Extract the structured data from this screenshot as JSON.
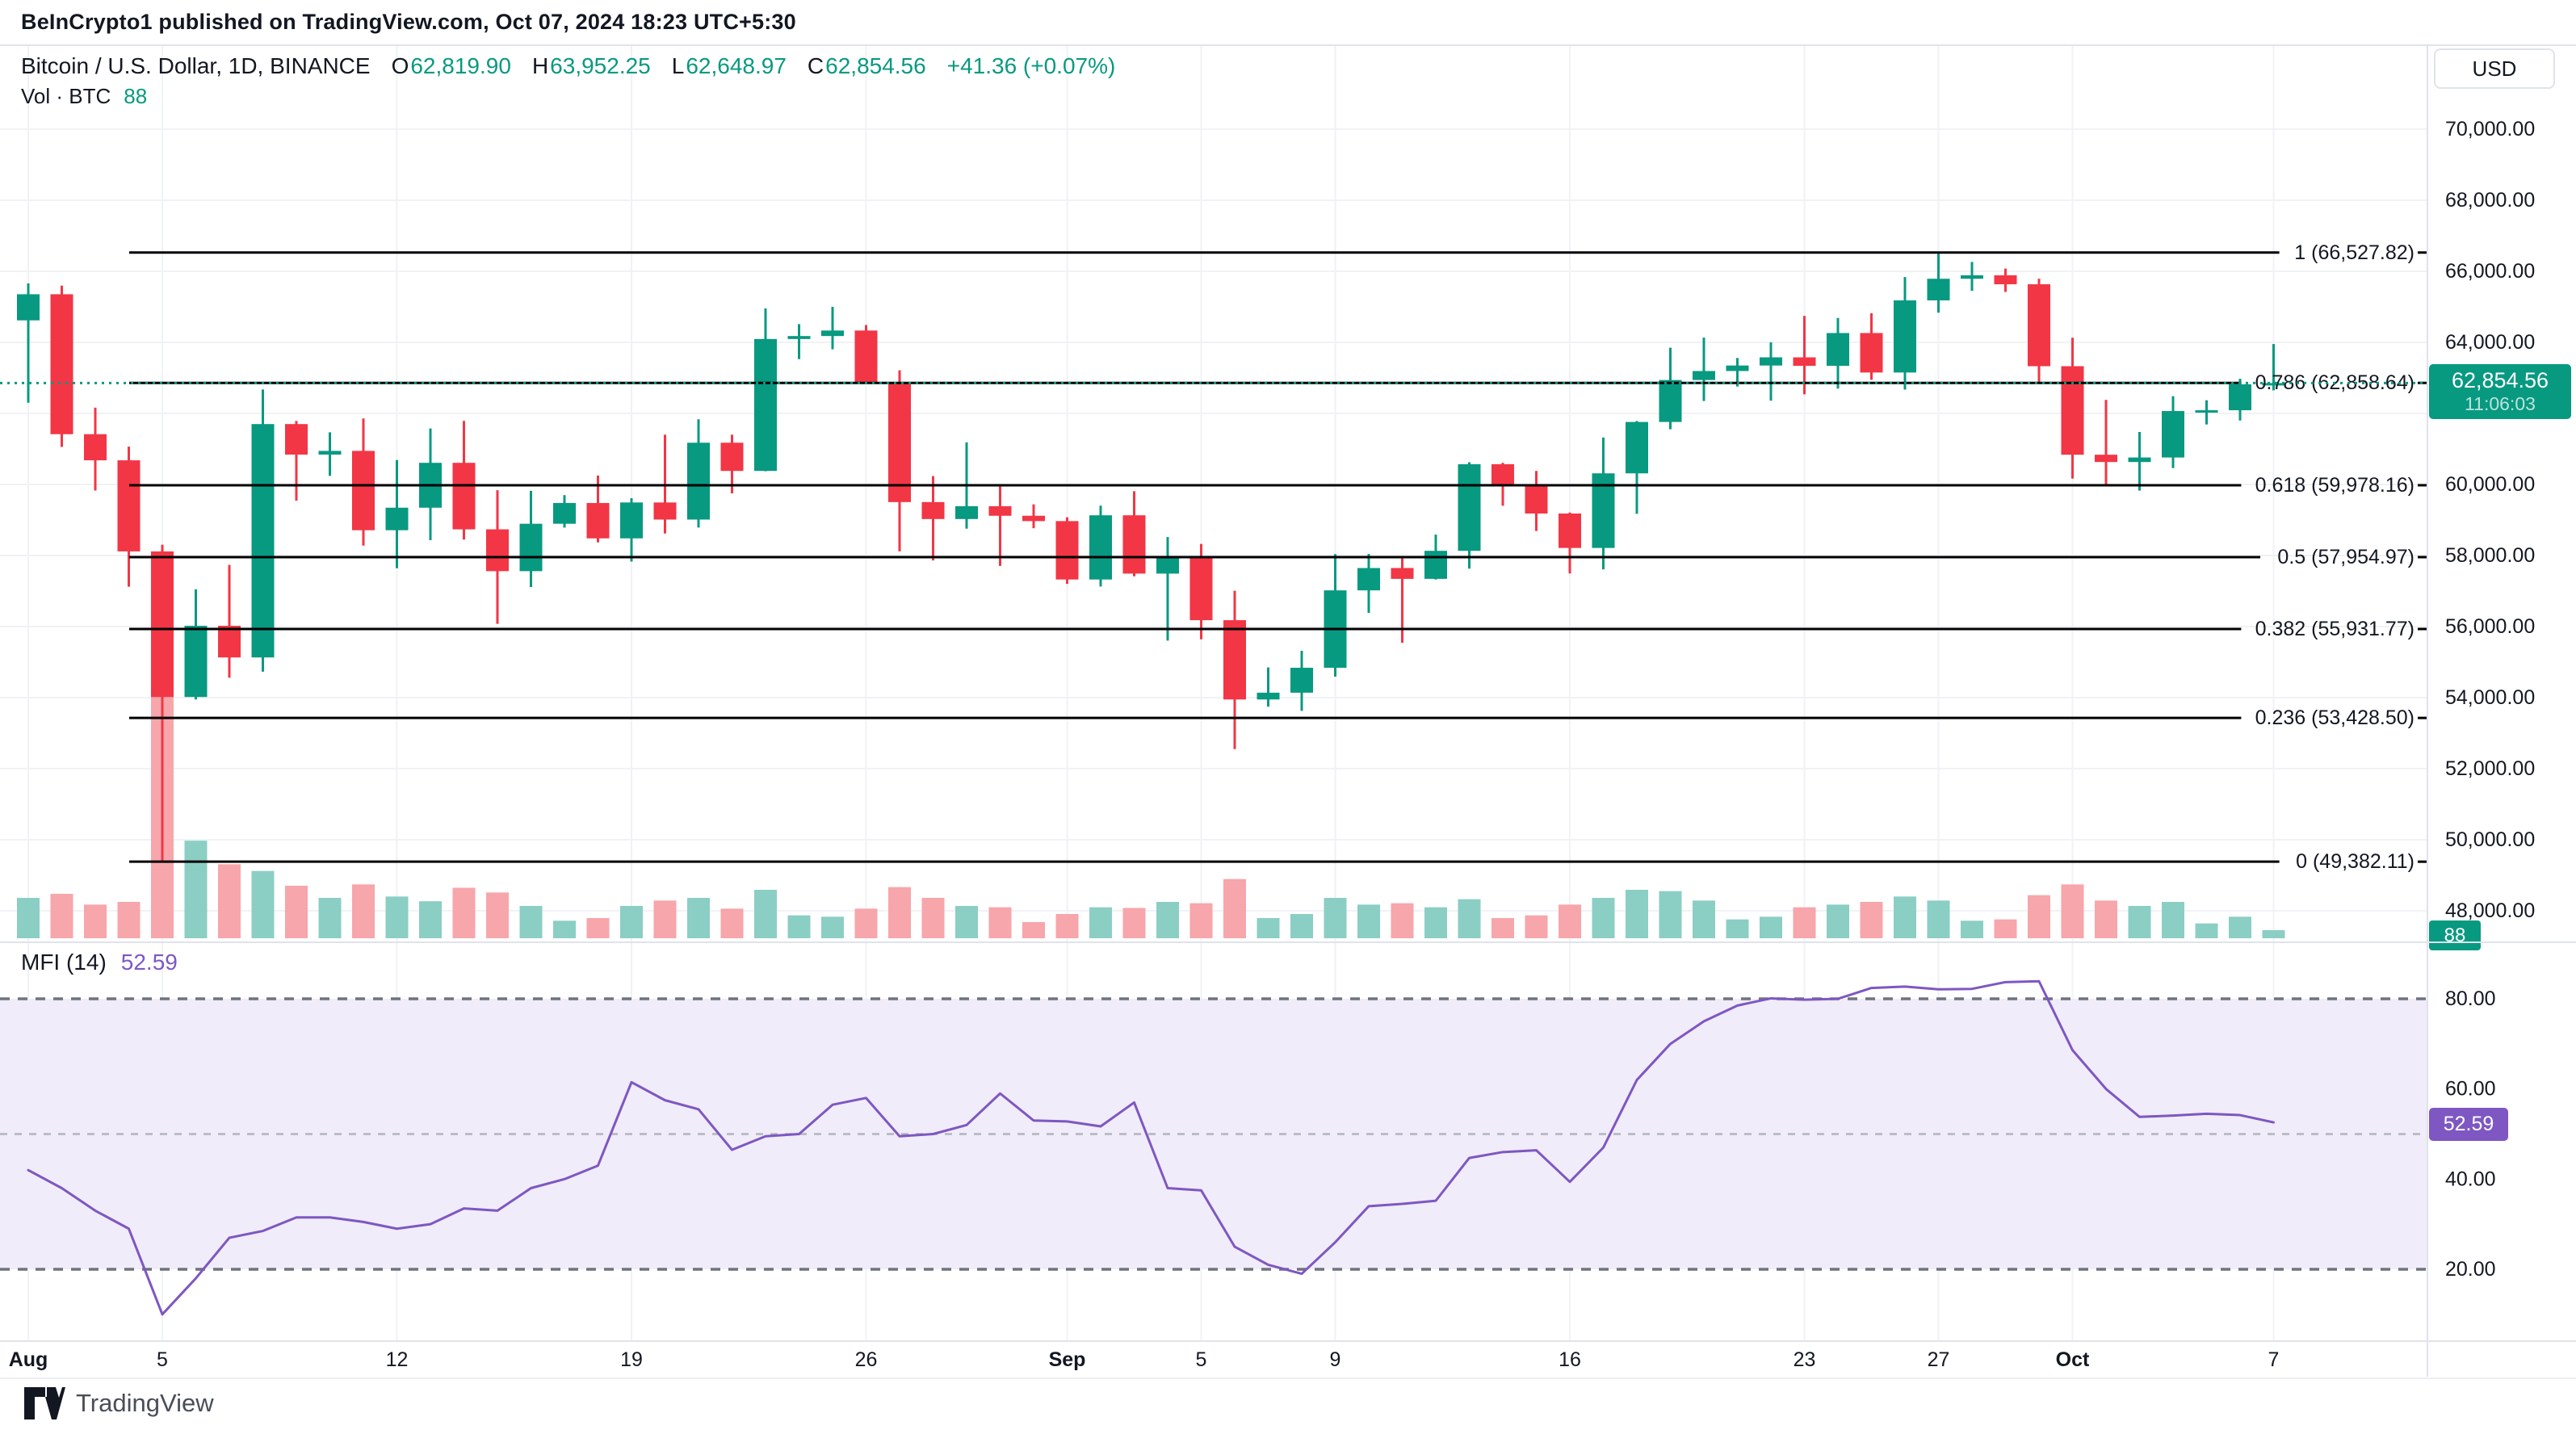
{
  "header": {
    "attribution": "BeInCrypto1 published on TradingView.com, Oct 07, 2024 18:23 UTC+5:30"
  },
  "toolbar": {
    "currency_button": "USD"
  },
  "legend": {
    "symbol": "Bitcoin / U.S. Dollar, 1D, BINANCE",
    "ohlc": [
      {
        "k": "O",
        "v": "62,819.90"
      },
      {
        "k": "H",
        "v": "63,952.25"
      },
      {
        "k": "L",
        "v": "62,648.97"
      },
      {
        "k": "C",
        "v": "62,854.56"
      }
    ],
    "change": "+41.36 (+0.07%)",
    "volume_label": "Vol · BTC",
    "volume_value": "88"
  },
  "price_axis": {
    "price_tag": {
      "price": "62,854.56",
      "countdown": "11:06:03"
    },
    "volume_tag": "88",
    "ticks": [
      {
        "v": 70000,
        "l": "70,000.00"
      },
      {
        "v": 68000,
        "l": "68,000.00"
      },
      {
        "v": 66000,
        "l": "66,000.00"
      },
      {
        "v": 64000,
        "l": "64,000.00"
      },
      {
        "v": 62000,
        "l": ""
      },
      {
        "v": 60000,
        "l": "60,000.00"
      },
      {
        "v": 58000,
        "l": "58,000.00"
      },
      {
        "v": 56000,
        "l": "56,000.00"
      },
      {
        "v": 54000,
        "l": "54,000.00"
      },
      {
        "v": 52000,
        "l": "52,000.00"
      },
      {
        "v": 50000,
        "l": "50,000.00"
      },
      {
        "v": 48000,
        "l": "48,000.00"
      }
    ]
  },
  "time_axis": {
    "ticks": [
      {
        "l": "Aug",
        "d": 0,
        "b": true
      },
      {
        "l": "5",
        "d": 4
      },
      {
        "l": "12",
        "d": 11
      },
      {
        "l": "19",
        "d": 18
      },
      {
        "l": "26",
        "d": 25
      },
      {
        "l": "Sep",
        "d": 31,
        "b": true
      },
      {
        "l": "5",
        "d": 35
      },
      {
        "l": "9",
        "d": 39
      },
      {
        "l": "16",
        "d": 46
      },
      {
        "l": "23",
        "d": 53
      },
      {
        "l": "27",
        "d": 57
      },
      {
        "l": "Oct",
        "d": 61,
        "b": true
      },
      {
        "l": "7",
        "d": 67
      }
    ]
  },
  "mfi_pane": {
    "title": "MFI (14)",
    "value": "52.59",
    "ticks": [
      {
        "v": 80,
        "l": "80.00"
      },
      {
        "v": 60,
        "l": "60.00"
      },
      {
        "v": 40,
        "l": "40.00"
      },
      {
        "v": 20,
        "l": "20.00"
      }
    ],
    "solid_grid": [
      60,
      40
    ],
    "bands": {
      "upper": 80,
      "middle": 50,
      "lower": 20
    }
  },
  "watermark": {
    "text": "TradingView"
  },
  "colors": {
    "up": "#089981",
    "down": "#f23645",
    "vol_up": "#8bcec4",
    "vol_down": "#f7a6ab",
    "mfi_line": "#7e57c2",
    "mfi_band": "#f0ecf9",
    "grid": "#f0f2f5",
    "divider": "#e0e3eb",
    "text": "#131722",
    "fib_line": "#000000",
    "dash_strong": "#6f737e",
    "dash_light": "#b2b5be"
  },
  "chart_data": {
    "type": "candlestick",
    "title": "Bitcoin / U.S. Dollar, 1D, BINANCE",
    "interval": "1D",
    "exchange": "BINANCE",
    "current_price": 62854.56,
    "visible_price_range": [
      48000,
      70000
    ],
    "visible_dates": [
      "Aug 1, 2024",
      "Oct 7, 2024"
    ],
    "fib_levels": [
      {
        "label": "1 (66,527.82)",
        "price": 66527.82
      },
      {
        "label": "0.786 (62,858.64)",
        "price": 62858.64
      },
      {
        "label": "0.618 (59,978.16)",
        "price": 59978.16
      },
      {
        "label": "0.5 (57,954.97)",
        "price": 57954.97
      },
      {
        "label": "0.382 (55,931.77)",
        "price": 55931.77
      },
      {
        "label": "0.236 (53,428.50)",
        "price": 53428.5
      },
      {
        "label": "0 (49,382.11)",
        "price": 49382.11
      }
    ],
    "candles_fields": [
      "date",
      "open",
      "high",
      "low",
      "close",
      "volume_rel"
    ],
    "candles": [
      [
        "Aug 1",
        64619,
        65659,
        62302,
        65354,
        60
      ],
      [
        "Aug 2",
        65354,
        65596,
        61057,
        61415,
        66
      ],
      [
        "Aug 3",
        61415,
        62162,
        59830,
        60680,
        50
      ],
      [
        "Aug 4",
        60680,
        61065,
        57122,
        58116,
        54
      ],
      [
        "Aug 5",
        58116,
        58305,
        49382,
        54018,
        360
      ],
      [
        "Aug 6",
        54018,
        57047,
        53950,
        56022,
        145
      ],
      [
        "Aug 7",
        56022,
        57736,
        54560,
        55131,
        110
      ],
      [
        "Aug 8",
        55131,
        62673,
        54730,
        61700,
        100
      ],
      [
        "Aug 9",
        61700,
        61786,
        59545,
        60841,
        78
      ],
      [
        "Aug 10",
        60841,
        61468,
        60242,
        60945,
        60
      ],
      [
        "Aug 11",
        60945,
        61859,
        58278,
        58712,
        80
      ],
      [
        "Aug 12",
        58712,
        60687,
        57642,
        59346,
        62
      ],
      [
        "Aug 13",
        59346,
        61578,
        58433,
        60609,
        55
      ],
      [
        "Aug 14",
        60609,
        61791,
        58449,
        58737,
        75
      ],
      [
        "Aug 15",
        58737,
        59838,
        56078,
        57560,
        68
      ],
      [
        "Aug 16",
        57560,
        59820,
        57113,
        58894,
        48
      ],
      [
        "Aug 17",
        58894,
        59700,
        58786,
        59478,
        26
      ],
      [
        "Aug 18",
        59478,
        60250,
        58370,
        58483,
        30
      ],
      [
        "Aug 19",
        58483,
        59613,
        57830,
        59493,
        48
      ],
      [
        "Aug 20",
        59493,
        61400,
        58619,
        59012,
        56
      ],
      [
        "Aug 21",
        59012,
        61834,
        58787,
        61175,
        60
      ],
      [
        "Aug 22",
        61175,
        61400,
        59750,
        60381,
        44
      ],
      [
        "Aug 23",
        60381,
        64955,
        60372,
        64094,
        72
      ],
      [
        "Aug 24",
        64094,
        64513,
        63528,
        64178,
        34
      ],
      [
        "Aug 25",
        64178,
        65000,
        63805,
        64333,
        32
      ],
      [
        "Aug 26",
        64333,
        64489,
        62849,
        62880,
        44
      ],
      [
        "Aug 27",
        62880,
        63212,
        58116,
        59504,
        76
      ],
      [
        "Aug 28",
        59504,
        60237,
        57860,
        59027,
        60
      ],
      [
        "Aug 29",
        59027,
        61184,
        58755,
        59388,
        48
      ],
      [
        "Aug 30",
        59388,
        59948,
        57706,
        59119,
        46
      ],
      [
        "Aug 31",
        59119,
        59440,
        58768,
        58969,
        24
      ],
      [
        "Sep 1",
        58969,
        59076,
        57201,
        57325,
        36
      ],
      [
        "Sep 2",
        57325,
        59403,
        57128,
        59132,
        46
      ],
      [
        "Sep 3",
        59132,
        59809,
        57415,
        57491,
        45
      ],
      [
        "Sep 4",
        57491,
        58519,
        55606,
        57971,
        54
      ],
      [
        "Sep 5",
        57971,
        58327,
        55643,
        56180,
        52
      ],
      [
        "Sep 6",
        56180,
        57008,
        52550,
        53948,
        88
      ],
      [
        "Sep 7",
        53948,
        54850,
        53745,
        54139,
        30
      ],
      [
        "Sep 8",
        54139,
        55318,
        53629,
        54841,
        36
      ],
      [
        "Sep 9",
        54841,
        58041,
        54591,
        57019,
        60
      ],
      [
        "Sep 10",
        57019,
        58044,
        56386,
        57648,
        50
      ],
      [
        "Sep 11",
        57648,
        57982,
        55545,
        57343,
        52
      ],
      [
        "Sep 12",
        57343,
        58588,
        57324,
        58132,
        46
      ],
      [
        "Sep 13",
        58132,
        60625,
        57632,
        60571,
        58
      ],
      [
        "Sep 14",
        60571,
        60610,
        59400,
        60005,
        30
      ],
      [
        "Sep 15",
        60005,
        60382,
        58691,
        59182,
        34
      ],
      [
        "Sep 16",
        59182,
        59210,
        57493,
        58213,
        50
      ],
      [
        "Sep 17",
        58213,
        61320,
        57610,
        60313,
        60
      ],
      [
        "Sep 18",
        60313,
        61786,
        59174,
        61759,
        72
      ],
      [
        "Sep 19",
        61759,
        63850,
        61555,
        62940,
        70
      ],
      [
        "Sep 20",
        62940,
        64133,
        62350,
        63193,
        56
      ],
      [
        "Sep 21",
        63193,
        63560,
        62758,
        63348,
        28
      ],
      [
        "Sep 22",
        63348,
        64000,
        62357,
        63578,
        32
      ],
      [
        "Sep 23",
        63578,
        64745,
        62538,
        63339,
        46
      ],
      [
        "Sep 24",
        63339,
        64688,
        62700,
        64262,
        50
      ],
      [
        "Sep 25",
        64262,
        64817,
        62946,
        63151,
        54
      ],
      [
        "Sep 26",
        63151,
        65838,
        62670,
        65181,
        62
      ],
      [
        "Sep 27",
        65181,
        66498,
        64836,
        65790,
        56
      ],
      [
        "Sep 28",
        65790,
        66263,
        65450,
        65887,
        26
      ],
      [
        "Sep 29",
        65887,
        66076,
        65420,
        65635,
        28
      ],
      [
        "Sep 30",
        65635,
        65790,
        62860,
        63329,
        64
      ],
      [
        "Oct 1",
        63329,
        64130,
        60164,
        60837,
        80
      ],
      [
        "Oct 2",
        60837,
        62380,
        60000,
        60632,
        56
      ],
      [
        "Oct 3",
        60632,
        61477,
        59828,
        60759,
        48
      ],
      [
        "Oct 4",
        60759,
        62485,
        60459,
        62067,
        54
      ],
      [
        "Oct 5",
        62067,
        62370,
        61689,
        62089,
        22
      ],
      [
        "Oct 6",
        62089,
        62975,
        61801,
        62819,
        32
      ],
      [
        "Oct 7",
        62819.9,
        63952.25,
        62648.97,
        62854.56,
        12
      ]
    ],
    "mfi": {
      "period": 14,
      "current": 52.59,
      "values": [
        42,
        38,
        33,
        29,
        10,
        18,
        27,
        28.5,
        31.5,
        31.5,
        30.5,
        29,
        30,
        33.5,
        33,
        38,
        40,
        43,
        61.5,
        57.5,
        55.5,
        46.5,
        49.5,
        50,
        56.5,
        58,
        49.5,
        50,
        52,
        59,
        53,
        52.8,
        51.7,
        57,
        38,
        37.5,
        25,
        21,
        19,
        26,
        34,
        34.5,
        35.2,
        44.7,
        46,
        46.4,
        39.4,
        47,
        62,
        70,
        75,
        78.5,
        80.1,
        79.8,
        80,
        82.4,
        82.7,
        82.1,
        82.2,
        83.7,
        83.9,
        68.6,
        60,
        53.8,
        54.1,
        54.5,
        54.2,
        52.59
      ]
    },
    "volume_current_btc": 88
  }
}
